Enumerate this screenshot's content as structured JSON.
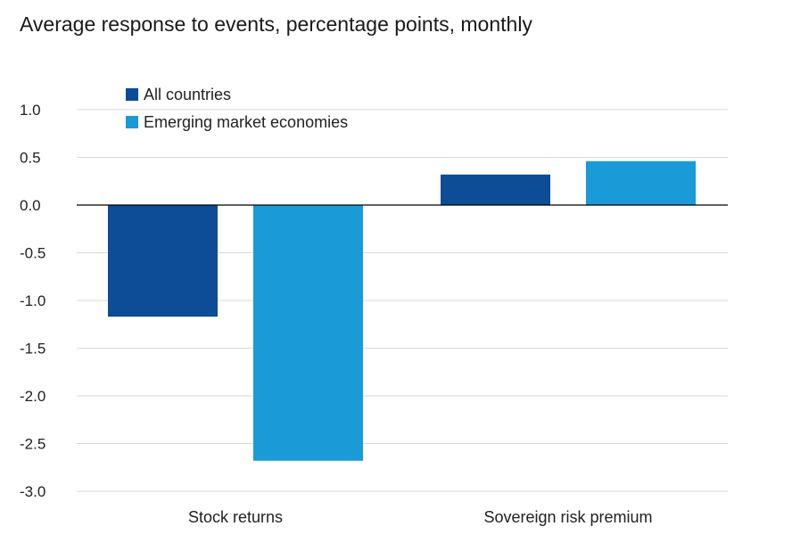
{
  "chart_data": {
    "type": "bar",
    "title": "Average response to events, percentage points, monthly",
    "categories": [
      "Stock returns",
      "Sovereign risk premium"
    ],
    "series": [
      {
        "name": "All countries",
        "color": "#0d4c96",
        "values": [
          -1.17,
          0.32
        ]
      },
      {
        "name": "Emerging market economies",
        "color": "#1a9ad6",
        "values": [
          -2.68,
          0.46
        ]
      }
    ],
    "yticks": [
      "1.0",
      "0.5",
      "0.0",
      "-0.5",
      "-1.0",
      "-1.5",
      "-2.0",
      "-2.5",
      "-3.0"
    ],
    "ylim": [
      -3.0,
      1.0
    ],
    "xlabel": "",
    "ylabel": "",
    "grid": true,
    "legend_position": "top-left"
  }
}
